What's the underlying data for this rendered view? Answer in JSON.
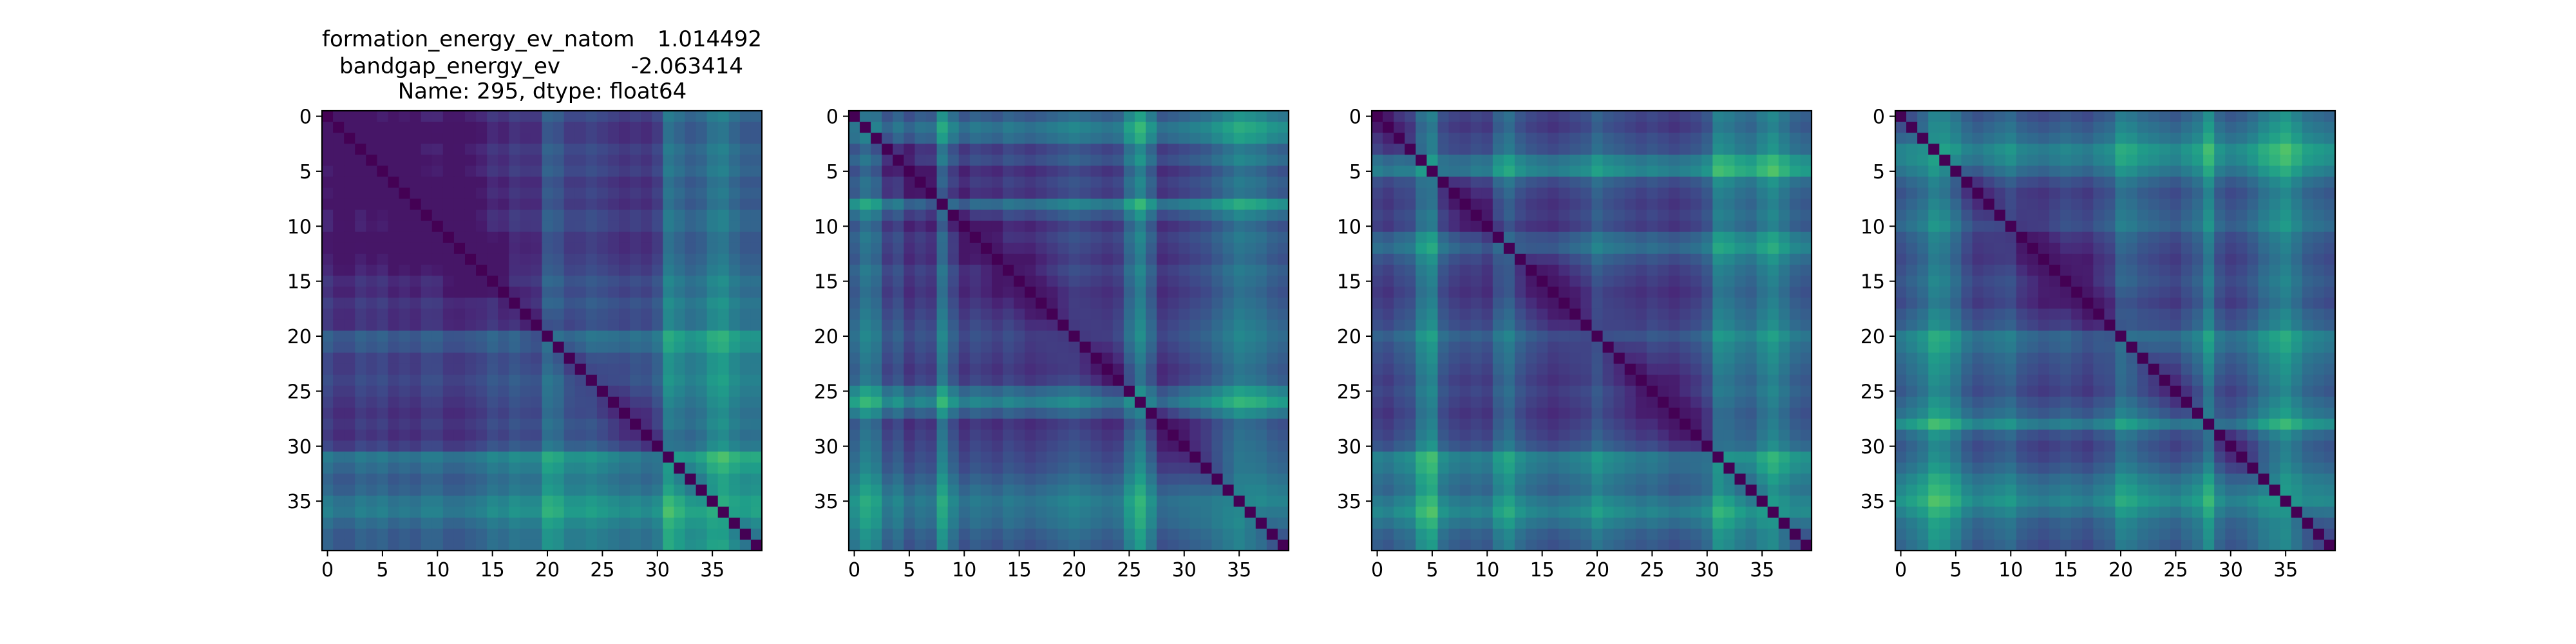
{
  "figure": {
    "title_lines": [
      {
        "label": "formation_energy_ev_natom",
        "value": "1.014492"
      },
      {
        "label": "bandgap_energy_ev",
        "value": "-2.063414"
      },
      {
        "label": "Name: 295, dtype: float64",
        "value": ""
      }
    ]
  },
  "colormap": "viridis",
  "chart_data": [
    {
      "type": "heatmap",
      "size": 40,
      "diagonal_value": 0,
      "x_ticks": [
        0,
        5,
        10,
        15,
        20,
        25,
        30,
        35
      ],
      "y_ticks": [
        0,
        5,
        10,
        15,
        20,
        25,
        30,
        35
      ],
      "x_tick_labels": [
        "0",
        "5",
        "10",
        "15",
        "20",
        "25",
        "30",
        "35"
      ],
      "y_tick_labels": [
        "0",
        "5",
        "10",
        "15",
        "20",
        "25",
        "30",
        "35"
      ],
      "profile": [
        0.3,
        0.2,
        0.2,
        0.3,
        0.25,
        0.3,
        0.2,
        0.25,
        0.2,
        0.3,
        0.3,
        0.2,
        0.2,
        0.25,
        0.3,
        0.4,
        0.35,
        0.45,
        0.4,
        0.4,
        0.7,
        0.65,
        0.5,
        0.5,
        0.55,
        0.5,
        0.45,
        0.4,
        0.45,
        0.4,
        0.5,
        0.9,
        0.8,
        0.7,
        0.75,
        0.9,
        0.95,
        0.8,
        0.7,
        0.7
      ]
    },
    {
      "type": "heatmap",
      "size": 40,
      "diagonal_value": 0,
      "x_ticks": [
        0,
        5,
        10,
        15,
        20,
        25,
        30,
        35
      ],
      "y_ticks": [
        0,
        5,
        10,
        15,
        20,
        25,
        30,
        35
      ],
      "x_tick_labels": [
        "0",
        "5",
        "10",
        "15",
        "20",
        "25",
        "30",
        "35"
      ],
      "y_tick_labels": [
        "0",
        "5",
        "10",
        "15",
        "20",
        "25",
        "30",
        "35"
      ],
      "profile": [
        0.6,
        0.8,
        0.7,
        0.4,
        0.5,
        0.3,
        0.4,
        0.35,
        0.8,
        0.5,
        0.3,
        0.4,
        0.35,
        0.3,
        0.4,
        0.35,
        0.3,
        0.35,
        0.4,
        0.45,
        0.5,
        0.45,
        0.4,
        0.35,
        0.4,
        0.7,
        0.9,
        0.6,
        0.3,
        0.35,
        0.4,
        0.45,
        0.5,
        0.6,
        0.7,
        0.8,
        0.75,
        0.7,
        0.6,
        0.55
      ]
    },
    {
      "type": "heatmap",
      "size": 40,
      "diagonal_value": 0,
      "x_ticks": [
        0,
        5,
        10,
        15,
        20,
        25,
        30,
        35
      ],
      "y_ticks": [
        0,
        5,
        10,
        15,
        20,
        25,
        30,
        35
      ],
      "x_tick_labels": [
        "0",
        "5",
        "10",
        "15",
        "20",
        "25",
        "30",
        "35"
      ],
      "y_tick_labels": [
        "0",
        "5",
        "10",
        "15",
        "20",
        "25",
        "30",
        "35"
      ],
      "profile": [
        0.4,
        0.35,
        0.45,
        0.5,
        0.8,
        0.9,
        0.5,
        0.4,
        0.35,
        0.4,
        0.35,
        0.6,
        0.7,
        0.5,
        0.4,
        0.35,
        0.3,
        0.35,
        0.4,
        0.45,
        0.6,
        0.5,
        0.45,
        0.4,
        0.35,
        0.4,
        0.35,
        0.3,
        0.35,
        0.4,
        0.5,
        0.85,
        0.8,
        0.7,
        0.65,
        0.8,
        0.9,
        0.75,
        0.6,
        0.55
      ]
    },
    {
      "type": "heatmap",
      "size": 40,
      "diagonal_value": 0,
      "x_ticks": [
        0,
        5,
        10,
        15,
        20,
        25,
        30,
        35
      ],
      "y_ticks": [
        0,
        5,
        10,
        15,
        20,
        25,
        30,
        35
      ],
      "x_tick_labels": [
        "0",
        "5",
        "10",
        "15",
        "20",
        "25",
        "30",
        "35"
      ],
      "y_tick_labels": [
        "0",
        "5",
        "10",
        "15",
        "20",
        "25",
        "30",
        "35"
      ],
      "profile": [
        0.5,
        0.6,
        0.7,
        0.9,
        0.85,
        0.7,
        0.5,
        0.4,
        0.45,
        0.5,
        0.55,
        0.4,
        0.35,
        0.3,
        0.35,
        0.4,
        0.35,
        0.3,
        0.4,
        0.45,
        0.7,
        0.65,
        0.55,
        0.5,
        0.45,
        0.4,
        0.5,
        0.6,
        0.85,
        0.5,
        0.4,
        0.45,
        0.55,
        0.7,
        0.8,
        0.9,
        0.75,
        0.6,
        0.55,
        0.5
      ]
    }
  ]
}
